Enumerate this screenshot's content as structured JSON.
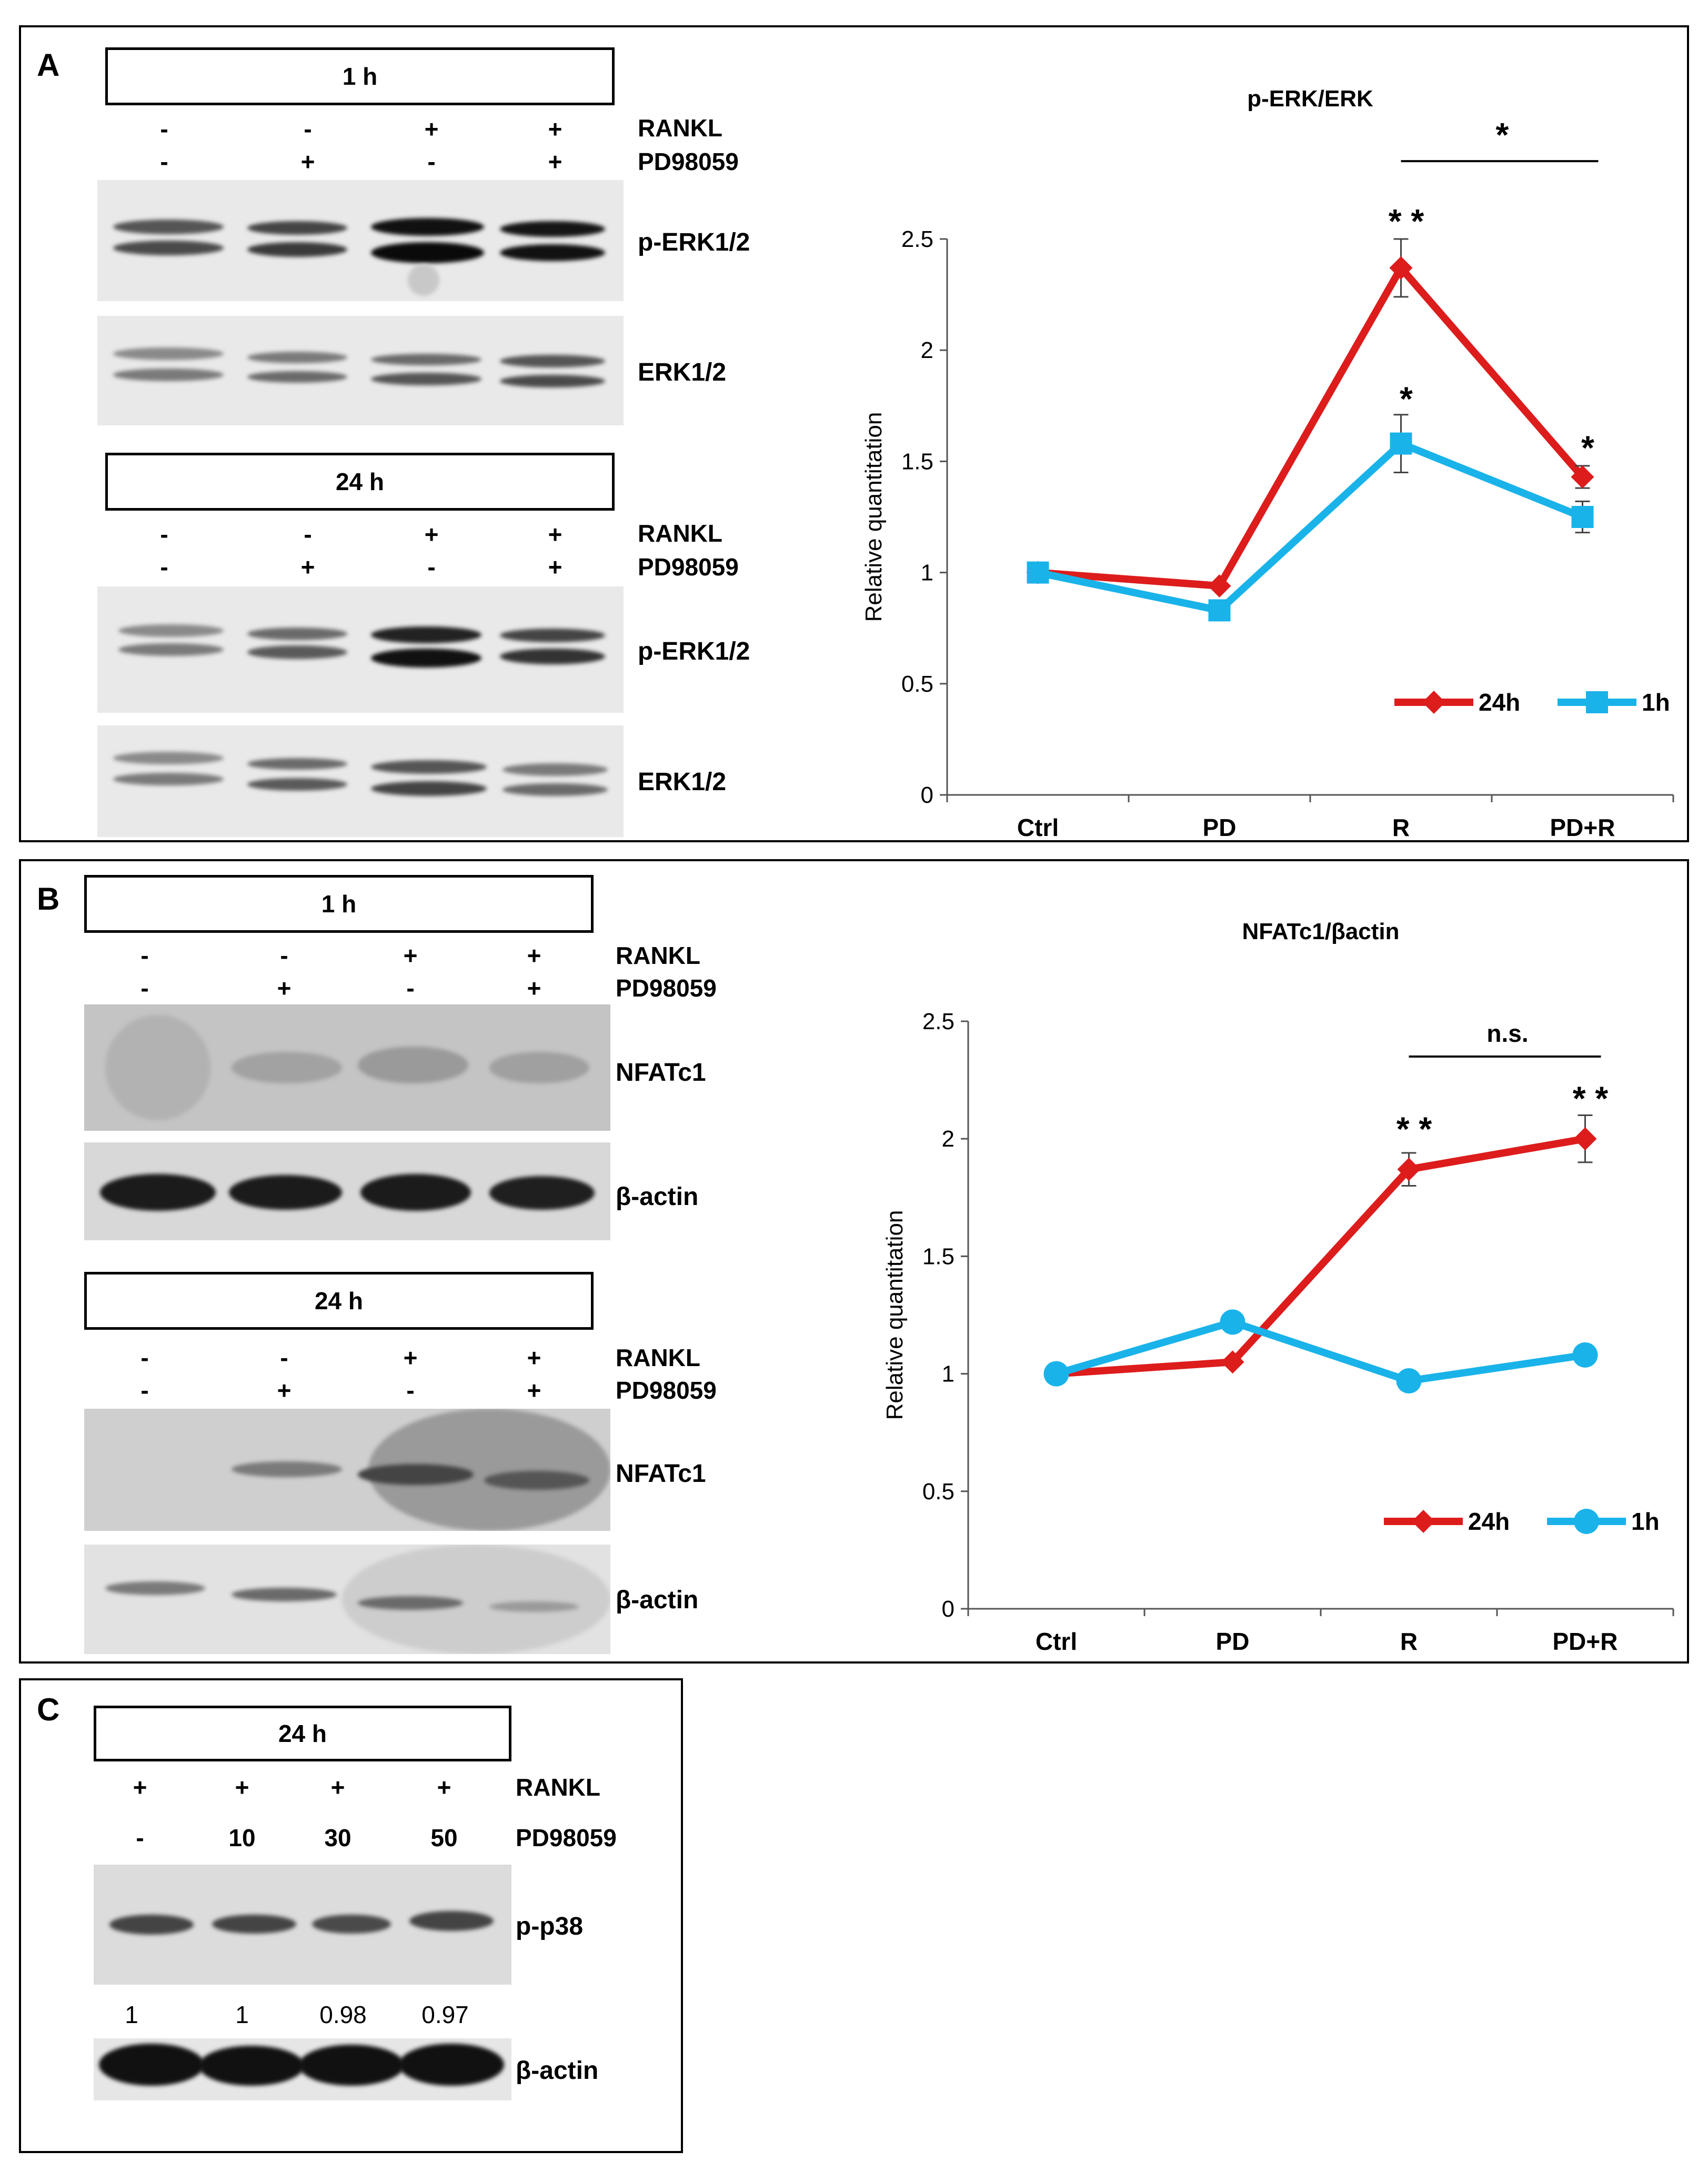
{
  "panelA": {
    "label": "A",
    "blots": [
      {
        "time": "1 h",
        "rankl_label": "RANKL",
        "pd_label": "PD98059",
        "rankl": [
          "-",
          "-",
          "+",
          "+"
        ],
        "pd": [
          "-",
          "+",
          "-",
          "+"
        ],
        "band1_label": "p-ERK1/2",
        "band2_label": "ERK1/2"
      },
      {
        "time": "24 h",
        "rankl_label": "RANKL",
        "pd_label": "PD98059",
        "rankl": [
          "-",
          "-",
          "+",
          "+"
        ],
        "pd": [
          "-",
          "+",
          "-",
          "+"
        ],
        "band1_label": "p-ERK1/2",
        "band2_label": "ERK1/2"
      }
    ]
  },
  "panelB": {
    "label": "B",
    "blots": [
      {
        "time": "1 h",
        "rankl_label": "RANKL",
        "pd_label": "PD98059",
        "rankl": [
          "-",
          "-",
          "+",
          "+"
        ],
        "pd": [
          "-",
          "+",
          "-",
          "+"
        ],
        "band1_label": "NFATc1",
        "band2_label": "β-actin"
      },
      {
        "time": "24 h",
        "rankl_label": "RANKL",
        "pd_label": "PD98059",
        "rankl": [
          "-",
          "-",
          "+",
          "+"
        ],
        "pd": [
          "-",
          "+",
          "-",
          "+"
        ],
        "band1_label": "NFATc1",
        "band2_label": "β-actin"
      }
    ]
  },
  "panelC": {
    "label": "C",
    "time": "24 h",
    "rankl_label": "RANKL",
    "pd_label": "PD98059",
    "rankl": [
      "+",
      "+",
      "+",
      "+"
    ],
    "pd": [
      "-",
      "10",
      "30",
      "50"
    ],
    "band1_label": "p-p38",
    "band2_label": "β-actin",
    "quant": [
      "1",
      "1",
      "0.98",
      "0.97"
    ]
  },
  "colors": {
    "series_24h": "#dd1c1c",
    "series_1h": "#19b3ea"
  },
  "chart_data": [
    {
      "type": "line",
      "title": "p-ERK/ERK",
      "ylabel": "Relative  quantitation",
      "xlabel": "",
      "categories": [
        "Ctrl",
        "PD",
        "R",
        "PD+R"
      ],
      "ylim": [
        0,
        2.5
      ],
      "yticks": [
        "0",
        "0.5",
        "1",
        "1.5",
        "2",
        "2.5"
      ],
      "legend_position": "bottom-right",
      "series": [
        {
          "name": "24h",
          "marker": "diamond",
          "values": [
            1.0,
            0.94,
            2.37,
            1.43
          ],
          "errors": [
            0,
            0,
            0.13,
            0.05
          ]
        },
        {
          "name": "1h",
          "marker": "square",
          "values": [
            1.0,
            0.83,
            1.58,
            1.25
          ],
          "errors": [
            0,
            0,
            0.13,
            0.07
          ]
        }
      ],
      "annotations": [
        {
          "text": "* *",
          "category": "R",
          "y": 2.6
        },
        {
          "text": "*",
          "category": "R",
          "y": 1.8
        },
        {
          "text": "*",
          "category": "PD+R",
          "y": 1.58
        },
        {
          "text": "*",
          "bracket": [
            "R",
            "PD+R"
          ],
          "y": 2.85
        }
      ]
    },
    {
      "type": "line",
      "title": "NFATc1/βactin",
      "ylabel": "Relative  quantitation",
      "xlabel": "",
      "categories": [
        "Ctrl",
        "PD",
        "R",
        "PD+R"
      ],
      "ylim": [
        0,
        2.5
      ],
      "yticks": [
        "0",
        "0.5",
        "1",
        "1.5",
        "2",
        "2.5"
      ],
      "legend_position": "bottom-right",
      "series": [
        {
          "name": "24h",
          "marker": "diamond",
          "values": [
            1.0,
            1.05,
            1.87,
            2.0
          ],
          "errors": [
            0,
            0,
            0.07,
            0.1
          ]
        },
        {
          "name": "1h",
          "marker": "circle",
          "values": [
            1.0,
            1.22,
            0.97,
            1.08
          ],
          "errors": [
            0,
            0,
            0,
            0
          ]
        }
      ],
      "annotations": [
        {
          "text": "* *",
          "category": "R",
          "y": 2.06
        },
        {
          "text": "* *",
          "category": "PD+R",
          "y": 2.19
        },
        {
          "text": "n.s.",
          "bracket": [
            "R",
            "PD+R"
          ],
          "y": 2.35
        }
      ]
    }
  ]
}
